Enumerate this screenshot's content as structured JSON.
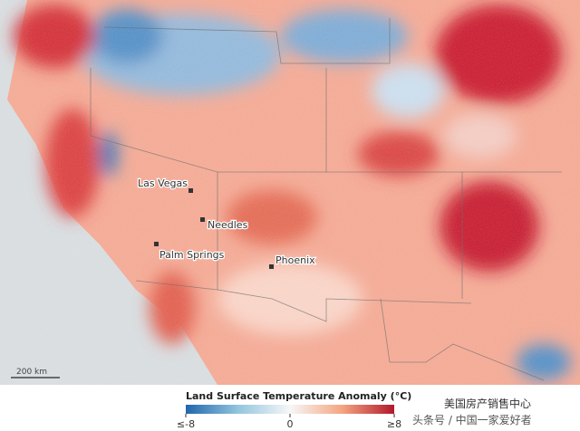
{
  "map": {
    "cities": [
      "Las Vegas",
      "Needles",
      "Palm Springs",
      "Phoenix"
    ],
    "scale_bar": "200 km",
    "legend": {
      "title": "Land Surface Temperature Anomaly (°C)",
      "ticks": [
        {
          "value": -8,
          "label": "≤-8"
        },
        0,
        {
          "value": 8,
          "label": "≥8"
        }
      ]
    },
    "watermark": [
      "美国房产销售中心",
      "头条号 / 中国一家爱好者"
    ]
  }
}
